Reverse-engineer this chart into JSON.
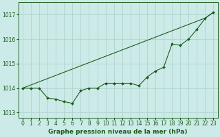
{
  "title": "Graphe pression niveau de la mer (hPa)",
  "background_color": "#cceae7",
  "grid_color": "#aacfcc",
  "line_color": "#1a5c1a",
  "hours": [
    0,
    1,
    2,
    3,
    4,
    5,
    6,
    7,
    8,
    9,
    10,
    11,
    12,
    13,
    14,
    15,
    16,
    17,
    18,
    19,
    20,
    21,
    22,
    23
  ],
  "line_measured": [
    1014.0,
    1014.0,
    1014.0,
    1013.6,
    1013.55,
    1013.45,
    1013.38,
    1013.9,
    1014.0,
    1014.0,
    1014.2,
    1014.2,
    1014.2,
    1014.2,
    1014.1,
    1014.45,
    1014.7,
    1014.85,
    1015.8,
    1015.75,
    1016.0,
    1016.4,
    1016.85,
    1017.1
  ],
  "line_trend": [
    1014.0,
    1014.13,
    1014.26,
    1014.39,
    1014.52,
    1014.65,
    1014.78,
    1014.91,
    1015.04,
    1015.17,
    1015.3,
    1015.43,
    1015.56,
    1015.69,
    1015.82,
    1015.95,
    1016.08,
    1016.21,
    1016.34,
    1016.47,
    1016.6,
    1016.73,
    1016.86,
    1017.1
  ],
  "ylim": [
    1012.8,
    1017.5
  ],
  "yticks": [
    1013,
    1014,
    1015,
    1016,
    1017
  ],
  "xlim": [
    -0.5,
    23.5
  ],
  "xticks": [
    0,
    1,
    2,
    3,
    4,
    5,
    6,
    7,
    8,
    9,
    10,
    11,
    12,
    13,
    14,
    15,
    16,
    17,
    18,
    19,
    20,
    21,
    22,
    23
  ],
  "marker_style": "D",
  "marker_size": 2.0,
  "linewidth": 0.8,
  "tick_fontsize": 5.5,
  "xlabel_fontsize": 6.5,
  "spine_color": "#1a5c1a"
}
